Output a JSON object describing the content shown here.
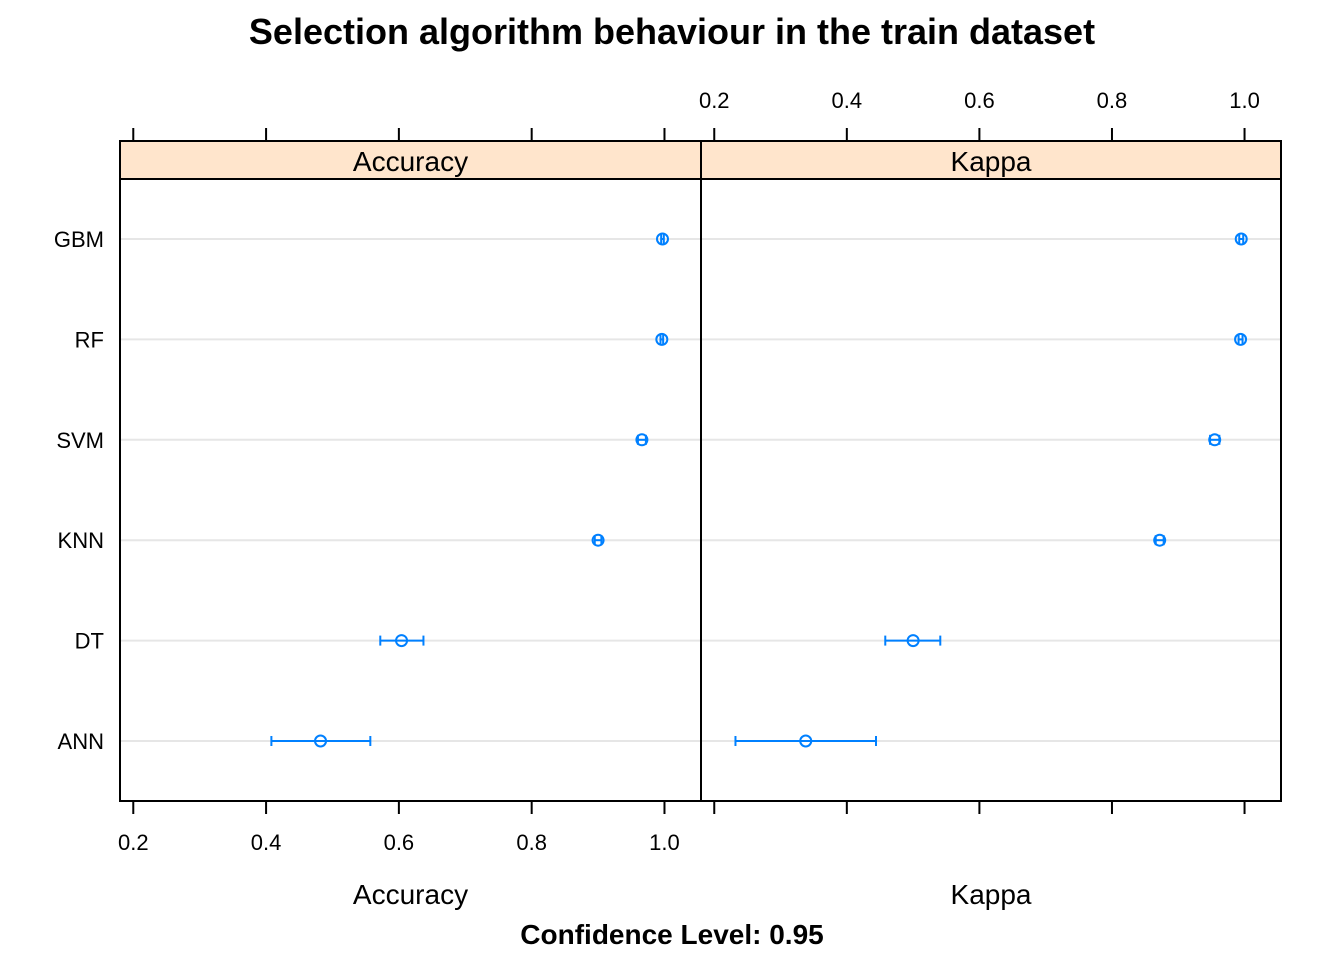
{
  "chart_data": {
    "type": "dotplot-errorbar",
    "title": "Selection algorithm behaviour in the train dataset",
    "subtitle": "Confidence Level: 0.95",
    "categories": [
      "GBM",
      "RF",
      "SVM",
      "KNN",
      "DT",
      "ANN"
    ],
    "panels": [
      {
        "name": "Accuracy",
        "xlabel": "Accuracy",
        "xlim": [
          0.18,
          1.055
        ],
        "ticks": [
          0.2,
          0.4,
          0.6,
          0.8,
          1.0
        ],
        "tick_labels": [
          "0.2",
          "0.4",
          "0.6",
          "0.8",
          "1.0"
        ],
        "tick_labels_position": "bottom",
        "points": [
          {
            "category": "GBM",
            "estimate": 0.997,
            "lower": 0.995,
            "upper": 0.999
          },
          {
            "category": "RF",
            "estimate": 0.996,
            "lower": 0.994,
            "upper": 0.998
          },
          {
            "category": "SVM",
            "estimate": 0.966,
            "lower": 0.96,
            "upper": 0.972
          },
          {
            "category": "KNN",
            "estimate": 0.9,
            "lower": 0.895,
            "upper": 0.905
          },
          {
            "category": "DT",
            "estimate": 0.604,
            "lower": 0.572,
            "upper": 0.637
          },
          {
            "category": "ANN",
            "estimate": 0.482,
            "lower": 0.408,
            "upper": 0.557
          }
        ]
      },
      {
        "name": "Kappa",
        "xlabel": "Kappa",
        "xlim": [
          0.18,
          1.055
        ],
        "ticks": [
          0.2,
          0.4,
          0.6,
          0.8,
          1.0
        ],
        "tick_labels": [
          "0.2",
          "0.4",
          "0.6",
          "0.8",
          "1.0"
        ],
        "tick_labels_position": "top",
        "points": [
          {
            "category": "GBM",
            "estimate": 0.995,
            "lower": 0.992,
            "upper": 0.998
          },
          {
            "category": "RF",
            "estimate": 0.994,
            "lower": 0.991,
            "upper": 0.997
          },
          {
            "category": "SVM",
            "estimate": 0.955,
            "lower": 0.948,
            "upper": 0.962
          },
          {
            "category": "KNN",
            "estimate": 0.872,
            "lower": 0.866,
            "upper": 0.878
          },
          {
            "category": "DT",
            "estimate": 0.5,
            "lower": 0.458,
            "upper": 0.541
          },
          {
            "category": "ANN",
            "estimate": 0.338,
            "lower": 0.232,
            "upper": 0.444
          }
        ]
      }
    ],
    "grid": true,
    "colors": {
      "point": "#0080ff",
      "strip_fill": "#ffe5cc",
      "grid": "#e6e6e6",
      "axis": "#000000"
    }
  }
}
